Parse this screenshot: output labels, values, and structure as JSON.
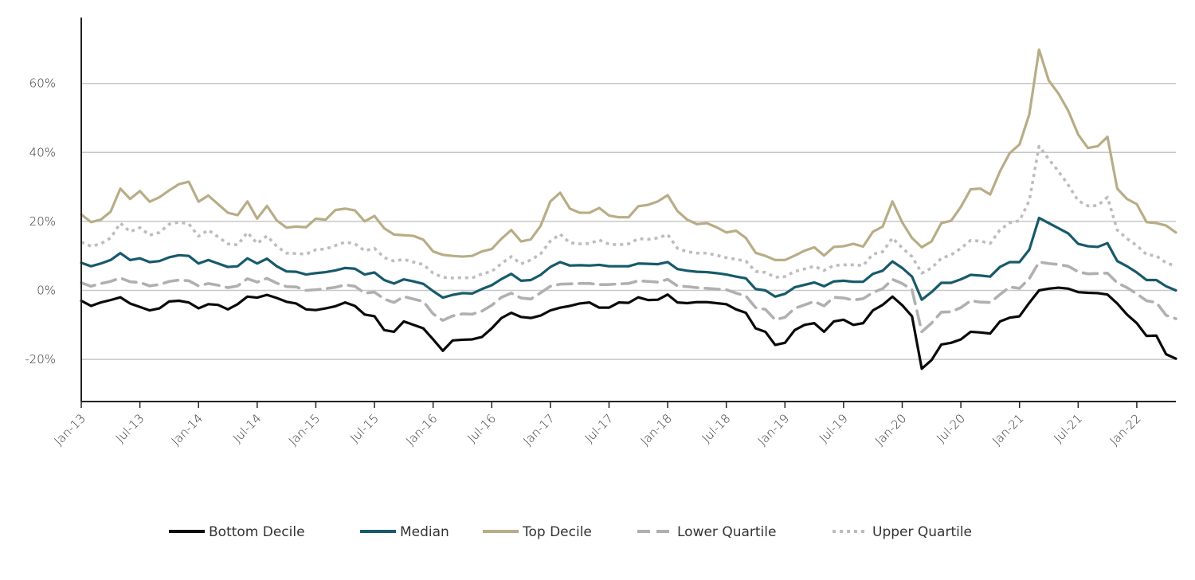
{
  "chart_data": {
    "type": "line",
    "title": "",
    "xlabel": "",
    "ylabel": "",
    "ylim": [
      -32,
      80
    ],
    "yticks": [
      -20,
      0,
      20,
      40,
      60
    ],
    "ytick_labels": [
      "-20%",
      "0%",
      "20%",
      "40%",
      "60%"
    ],
    "xticks": [
      0,
      6,
      12,
      18,
      24,
      30,
      36,
      42,
      48,
      54,
      60,
      66,
      72,
      78,
      84,
      90,
      96,
      102,
      108
    ],
    "xtick_labels": [
      "Jan-13",
      "Jul-13",
      "Jan-14",
      "Jul-14",
      "Jan-15",
      "Jul-15",
      "Jan-16",
      "Jul-16",
      "Jan-17",
      "Jul-17",
      "Jan-18",
      "Jul-18",
      "Jan-19",
      "Jul-19",
      "Jan-20",
      "Jul-20",
      "Jan-21",
      "Jul-21",
      "Jan-22"
    ],
    "grid": true,
    "legend_position": "bottom",
    "series": [
      {
        "name": "Bottom Decile",
        "color": "#0a0a0a",
        "dash": "solid",
        "values": [
          -3,
          -4.5,
          -3.5,
          -2.8,
          -2,
          -3.8,
          -4.8,
          -5.8,
          -5.2,
          -3.2,
          -3,
          -3.5,
          -5.2,
          -4,
          -4.2,
          -5.5,
          -4,
          -1.8,
          -2.1,
          -1.3,
          -2.2,
          -3.3,
          -3.8,
          -5.5,
          -5.7,
          -5.2,
          -4.6,
          -3.5,
          -4.5,
          -7,
          -7.5,
          -11.5,
          -12,
          -9,
          -10,
          -11,
          -14.2,
          -17.5,
          -14.5,
          -14.3,
          -14.2,
          -13.5,
          -11,
          -8,
          -6.5,
          -7.7,
          -8,
          -7.3,
          -5.8,
          -5,
          -4.5,
          -3.8,
          -3.5,
          -5,
          -5,
          -3.5,
          -3.6,
          -2,
          -2.8,
          -2.7,
          -1.2,
          -3.5,
          -3.7,
          -3.4,
          -3.4,
          -3.7,
          -4,
          -5.5,
          -6.5,
          -11,
          -12,
          -15.8,
          -15.2,
          -11.5,
          -10,
          -9.5,
          -12,
          -9,
          -8.5,
          -10,
          -9.5,
          -5.8,
          -4.2,
          -1.8,
          -4.3,
          -7.5,
          -22.7,
          -20.2,
          -15.7,
          -15.2,
          -14.2,
          -12,
          -12.2,
          -12.5,
          -9,
          -7.9,
          -7.5,
          -3.6,
          0,
          0.5,
          0.8,
          0.5,
          -0.5,
          -0.7,
          -0.8,
          -1.2,
          -3.8,
          -7,
          -9.5,
          -13.2,
          -13.1,
          -18.5,
          -19.8
        ]
      },
      {
        "name": "Median",
        "color": "#175a6b",
        "dash": "solid",
        "values": [
          8,
          7,
          7.8,
          8.8,
          10.8,
          8.8,
          9.3,
          8.2,
          8.5,
          9.6,
          10.2,
          10,
          7.8,
          8.8,
          7.8,
          6.8,
          7,
          9.3,
          7.8,
          9.2,
          7,
          5.5,
          5.4,
          4.6,
          5,
          5.3,
          5.8,
          6.5,
          6.3,
          4.6,
          5.2,
          3,
          2,
          3.2,
          2.6,
          1.9,
          -0.2,
          -2.1,
          -1.3,
          -0.8,
          -0.9,
          0.4,
          1.5,
          3.3,
          4.8,
          2.8,
          3,
          4.5,
          6.8,
          8.2,
          7.2,
          7.3,
          7.2,
          7.4,
          7,
          7,
          7,
          7.8,
          7.7,
          7.6,
          8.2,
          6.2,
          5.7,
          5.4,
          5.3,
          5,
          4.6,
          4,
          3.5,
          0.4,
          0,
          -1.8,
          -1,
          0.9,
          1.6,
          2.3,
          1.2,
          2.6,
          2.8,
          2.5,
          2.5,
          4.8,
          5.7,
          8.4,
          6.5,
          4,
          -2.7,
          -0.5,
          2.2,
          2.2,
          3.2,
          4.5,
          4.3,
          4,
          6.8,
          8.2,
          8.2,
          11.8,
          21,
          19.5,
          18,
          16.5,
          13.5,
          12.8,
          12.6,
          13.7,
          8.5,
          7,
          5.2,
          3,
          3,
          1.2,
          0
        ]
      },
      {
        "name": "Top Decile",
        "color": "#b8ad87",
        "dash": "solid",
        "values": [
          22,
          19.8,
          20.5,
          22.8,
          29.5,
          26.5,
          28.8,
          25.7,
          27,
          29,
          30.8,
          31.5,
          25.7,
          27.5,
          25,
          22.5,
          21.8,
          25.8,
          20.8,
          24.5,
          20.3,
          18.2,
          18.5,
          18.3,
          20.8,
          20.5,
          23.3,
          23.7,
          23.2,
          20,
          21.6,
          18,
          16.2,
          16,
          15.8,
          14.7,
          11.3,
          10.3,
          10,
          9.8,
          10,
          11.3,
          12,
          15,
          17.5,
          14.2,
          14.8,
          18.7,
          25.8,
          28.3,
          23.7,
          22.5,
          22.5,
          23.9,
          21.7,
          21.2,
          21.2,
          24.4,
          24.8,
          25.8,
          27.6,
          23,
          20.5,
          19.2,
          19.5,
          18.3,
          16.8,
          17.3,
          15.2,
          10.9,
          10,
          8.8,
          8.8,
          10.1,
          11.5,
          12.5,
          10.1,
          12.6,
          12.8,
          13.5,
          12.7,
          17,
          18.5,
          25.8,
          19.7,
          15.2,
          12.5,
          14.2,
          19.5,
          20.2,
          24.2,
          29.3,
          29.5,
          27.8,
          34.5,
          39.8,
          42.3,
          51,
          69.8,
          60.8,
          57,
          52,
          45.2,
          41.3,
          41.8,
          44.5,
          29.5,
          26.5,
          25,
          19.8,
          19.5,
          18.8,
          16.8
        ]
      },
      {
        "name": "Lower Quartile",
        "color": "#b0b0b0",
        "dash": "dashed",
        "values": [
          2.2,
          1.2,
          2,
          2.6,
          3.6,
          2.5,
          2.3,
          1.3,
          1.7,
          2.6,
          3,
          2.8,
          1.3,
          2,
          1.5,
          0.8,
          1.3,
          3.4,
          2.4,
          3.5,
          2.1,
          1.1,
          1,
          0,
          0.2,
          0.5,
          0.9,
          1.6,
          1.2,
          -0.8,
          -0.5,
          -2.5,
          -3.5,
          -1.8,
          -2.5,
          -3.2,
          -6.8,
          -8.7,
          -7.4,
          -6.8,
          -6.9,
          -6,
          -4.3,
          -2,
          -0.8,
          -2.2,
          -2.5,
          -0.7,
          1.2,
          1.8,
          1.9,
          2,
          2,
          1.7,
          1.7,
          1.9,
          2,
          2.8,
          2.6,
          2.4,
          3.2,
          1.3,
          1.1,
          0.8,
          0.6,
          0.4,
          0.2,
          -0.8,
          -1.6,
          -5,
          -5.5,
          -8.5,
          -7.8,
          -5.2,
          -4.2,
          -3.2,
          -4.5,
          -2,
          -2.2,
          -2.8,
          -2.4,
          -0.6,
          0.5,
          3.2,
          2,
          0.2,
          -12,
          -9.5,
          -6.3,
          -6.2,
          -5,
          -3,
          -3.4,
          -3.5,
          -1.2,
          1,
          0.6,
          3.4,
          8.2,
          7.8,
          7.5,
          7,
          5.4,
          4.8,
          4.9,
          5,
          2.2,
          0.8,
          -1,
          -3,
          -3.5,
          -7.2,
          -8.2
        ]
      },
      {
        "name": "Upper Quartile",
        "color": "#bdbdbd",
        "dash": "dotted",
        "values": [
          14,
          12.8,
          13.5,
          15.2,
          19.5,
          17,
          18.2,
          16,
          16.8,
          19.2,
          19.8,
          19.3,
          15.7,
          17.5,
          15.5,
          13.5,
          13.2,
          16.8,
          13.6,
          15.8,
          12.8,
          10.8,
          10.7,
          10.5,
          11.8,
          12,
          13,
          14,
          13.5,
          11.5,
          12.2,
          9.5,
          8.5,
          9,
          8.2,
          7.5,
          5,
          3.8,
          3.6,
          3.7,
          3.6,
          4.8,
          5.5,
          7.8,
          9.8,
          7.7,
          8.8,
          10.6,
          14.3,
          16.3,
          13.8,
          13.5,
          13.6,
          14.6,
          13.4,
          13.2,
          13.5,
          15,
          14.8,
          15.2,
          16.2,
          12.2,
          11.2,
          10.8,
          10.8,
          10.2,
          9.5,
          9,
          8.5,
          5.5,
          5.2,
          3.8,
          4,
          5.5,
          6.2,
          7,
          5.8,
          7.2,
          7.4,
          7.4,
          7.2,
          10.5,
          11.2,
          15.2,
          12.3,
          9.8,
          5,
          6.5,
          9.3,
          10.3,
          12.2,
          14.5,
          14.3,
          13.6,
          17.5,
          19.6,
          20.2,
          26,
          41.8,
          38,
          34.5,
          30.5,
          26,
          24.5,
          24.6,
          27,
          17.5,
          15,
          13,
          10.4,
          10,
          8,
          7
        ]
      }
    ]
  }
}
